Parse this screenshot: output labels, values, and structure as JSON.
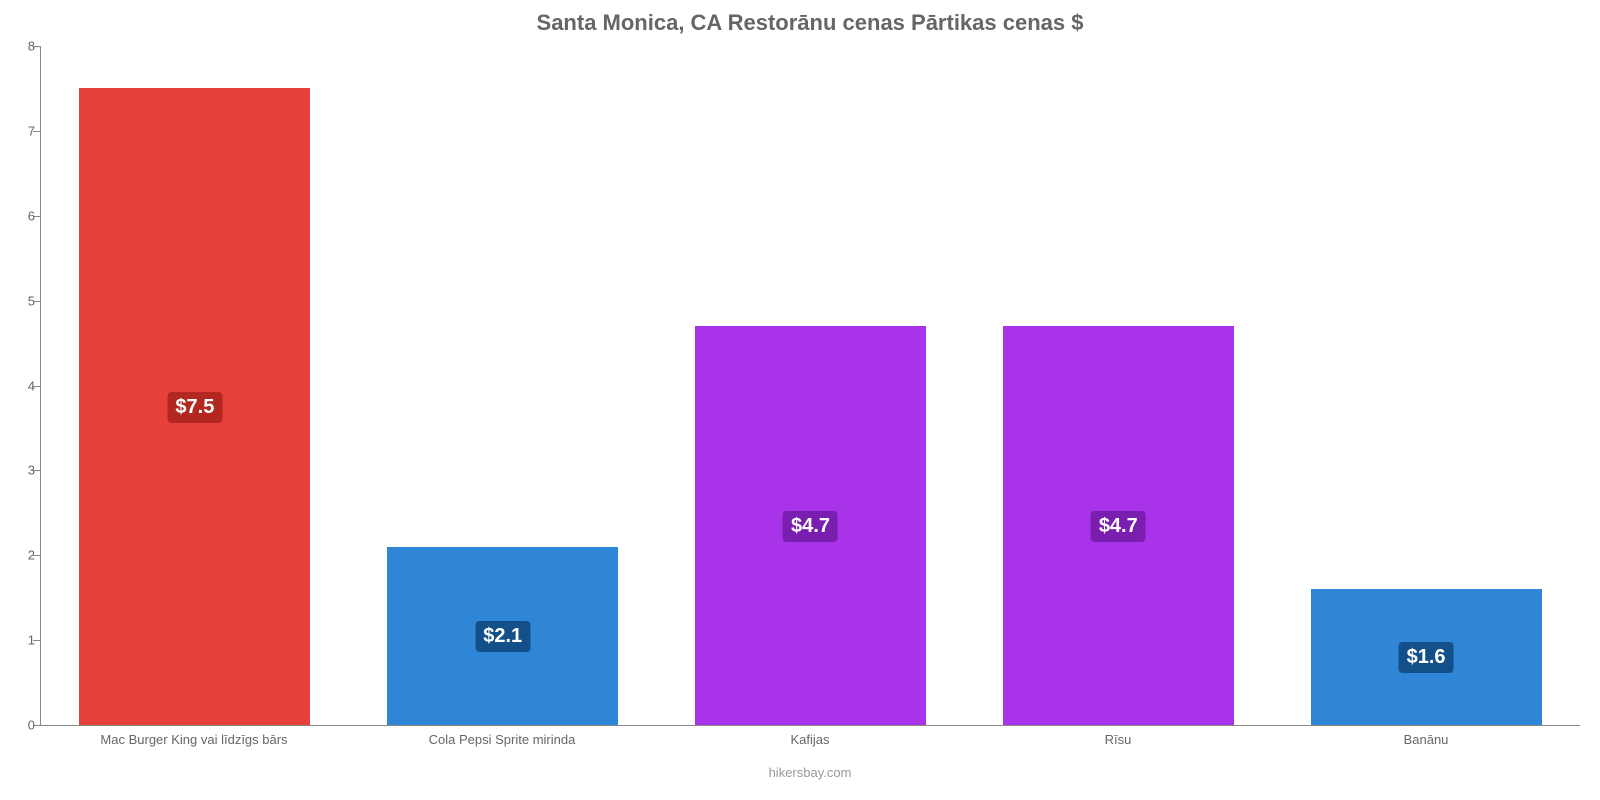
{
  "chart": {
    "type": "bar",
    "title": "Santa Monica, CA Restorānu cenas Pārtikas cenas $",
    "title_fontsize": 22,
    "title_color": "#666666",
    "attribution": "hikersbay.com",
    "attribution_color": "#999999",
    "background_color": "#ffffff",
    "axis_color": "#888888",
    "label_color": "#666666",
    "label_fontsize": 13,
    "value_label_fontsize": 20,
    "value_label_color": "#ffffff",
    "ylim": [
      0,
      8
    ],
    "ytick_step": 1,
    "yticks": [
      0,
      1,
      2,
      3,
      4,
      5,
      6,
      7,
      8
    ],
    "bar_width_pct": 75,
    "categories": [
      "Mac Burger King vai līdzīgs bārs",
      "Cola Pepsi Sprite mirinda",
      "Kafijas",
      "Rīsu",
      "Banānu"
    ],
    "values": [
      7.5,
      2.1,
      4.7,
      4.7,
      1.6
    ],
    "value_labels": [
      "$7.5",
      "$2.1",
      "$4.7",
      "$4.7",
      "$1.6"
    ],
    "bar_colors": [
      "#e8403a",
      "#2f86d6",
      "#a833e8",
      "#a833e8",
      "#2f86d6"
    ],
    "value_badge_colors": [
      "#b22820",
      "#135089",
      "#7a1eb0",
      "#7a1eb0",
      "#135089"
    ]
  }
}
